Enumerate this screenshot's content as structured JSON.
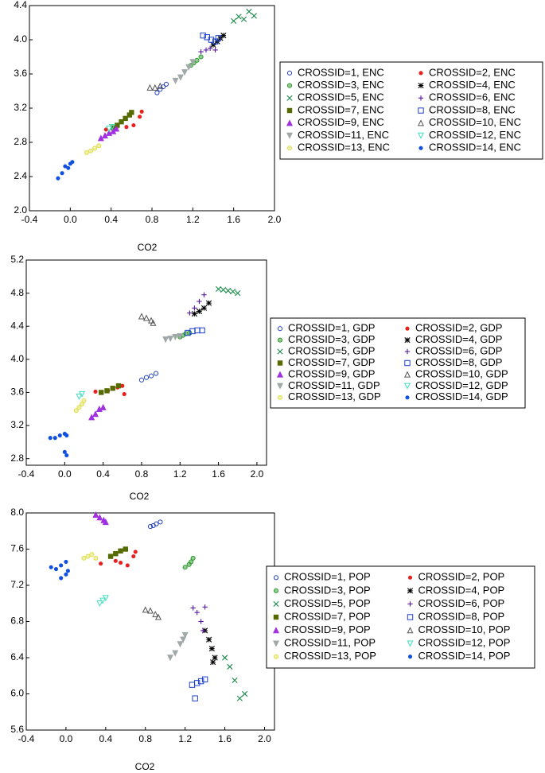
{
  "chart_data": [
    {
      "type": "scatter",
      "x_label": "CO2",
      "xlim": [
        -0.4,
        2.0
      ],
      "ylim": [
        2.0,
        4.4
      ],
      "xticks": [
        -0.4,
        {
          "value": 0,
          "label": "0.0"
        },
        0.4,
        0.8,
        1.2,
        1.6,
        {
          "value": 2,
          "label": "2.0"
        }
      ],
      "yticks": [
        {
          "value": 2,
          "label": "2.0"
        },
        2.4,
        2.8,
        3.2,
        3.6,
        {
          "value": 4,
          "label": "4.0"
        },
        4.4
      ],
      "series": [
        {
          "name": "CROSSID=1, ENC",
          "color": "#1f3fbf",
          "marker": "circle-open",
          "x": [
            0.85,
            0.88,
            0.91,
            0.94
          ],
          "values": [
            3.38,
            3.42,
            3.45,
            3.48
          ]
        },
        {
          "name": "CROSSID=2, ENC",
          "color": "#e8201e",
          "marker": "dot",
          "x": [
            0.35,
            0.45,
            0.55,
            0.62,
            0.68,
            0.7
          ],
          "values": [
            2.95,
            2.96,
            2.98,
            3.0,
            3.1,
            3.16
          ]
        },
        {
          "name": "CROSSID=3, ENC",
          "color": "#2a9a2a",
          "marker": "circle-half",
          "x": [
            1.18,
            1.21,
            1.24,
            1.28
          ],
          "values": [
            3.7,
            3.73,
            3.76,
            3.8
          ]
        },
        {
          "name": "CROSSID=4, ENC",
          "color": "#000000",
          "marker": "asterisk",
          "x": [
            1.4,
            1.44,
            1.47,
            1.5
          ],
          "values": [
            3.94,
            3.98,
            4.02,
            4.05
          ]
        },
        {
          "name": "CROSSID=5, ENC",
          "color": "#1a8a4a",
          "marker": "x",
          "x": [
            1.6,
            1.65,
            1.7,
            1.75,
            1.8
          ],
          "values": [
            4.22,
            4.27,
            4.24,
            4.33,
            4.28
          ]
        },
        {
          "name": "CROSSID=6, ENC",
          "color": "#5a1aa0",
          "marker": "plus",
          "x": [
            1.28,
            1.33,
            1.37,
            1.42
          ],
          "values": [
            3.86,
            3.88,
            3.9,
            3.88
          ]
        },
        {
          "name": "CROSSID=7, ENC",
          "color": "#556b00",
          "marker": "square",
          "x": [
            0.42,
            0.46,
            0.5,
            0.54,
            0.58,
            0.6
          ],
          "values": [
            2.97,
            3.0,
            3.04,
            3.08,
            3.12,
            3.15
          ]
        },
        {
          "name": "CROSSID=8, ENC",
          "color": "#1a3fcf",
          "marker": "square-open",
          "x": [
            1.3,
            1.34,
            1.38,
            1.42,
            1.45
          ],
          "values": [
            4.05,
            4.03,
            4.0,
            3.98,
            4.02
          ]
        },
        {
          "name": "CROSSID=9, ENC",
          "color": "#a030e0",
          "marker": "triangle",
          "x": [
            0.3,
            0.34,
            0.38,
            0.42,
            0.45
          ],
          "values": [
            2.85,
            2.88,
            2.91,
            2.93,
            2.96
          ]
        },
        {
          "name": "CROSSID=10, ENC",
          "color": "#555555",
          "marker": "triangle-open",
          "x": [
            0.78,
            0.83,
            0.88
          ],
          "values": [
            3.44,
            3.44,
            3.46
          ]
        },
        {
          "name": "CROSSID=11, ENC",
          "color": "#a0a8a8",
          "marker": "triangle-down",
          "x": [
            1.03,
            1.08,
            1.12,
            1.16,
            1.2
          ],
          "values": [
            3.52,
            3.56,
            3.62,
            3.68,
            3.74
          ]
        },
        {
          "name": "CROSSID=12, ENC",
          "color": "#40e0c0",
          "marker": "triangle-down-open",
          "x": [
            0.38,
            0.41
          ],
          "values": [
            2.96,
            2.98
          ]
        },
        {
          "name": "CROSSID=13, ENC",
          "color": "#e0e050",
          "marker": "circle-half",
          "x": [
            0.16,
            0.2,
            0.24,
            0.28
          ],
          "values": [
            2.68,
            2.7,
            2.73,
            2.76
          ]
        },
        {
          "name": "CROSSID=14, ENC",
          "color": "#1050e0",
          "marker": "dot",
          "x": [
            -0.12,
            -0.08,
            -0.05,
            -0.02,
            0.0,
            0.02
          ],
          "values": [
            2.38,
            2.44,
            2.52,
            2.5,
            2.55,
            2.57
          ]
        }
      ]
    },
    {
      "type": "scatter",
      "x_label": "CO2",
      "xlim": [
        -0.4,
        2.1
      ],
      "ylim": [
        2.72,
        5.2
      ],
      "xticks": [
        -0.4,
        {
          "value": 0,
          "label": "0.0"
        },
        0.4,
        0.8,
        1.2,
        1.6,
        {
          "value": 2,
          "label": "2.0"
        }
      ],
      "yticks": [
        2.8,
        3.2,
        3.6,
        {
          "value": 4,
          "label": "4.0"
        },
        4.4,
        4.8,
        5.2
      ],
      "series": [
        {
          "name": "CROSSID=1, GDP",
          "color": "#1f3fbf",
          "marker": "circle-open",
          "x": [
            0.8,
            0.85,
            0.9,
            0.95
          ],
          "values": [
            3.75,
            3.78,
            3.8,
            3.83
          ]
        },
        {
          "name": "CROSSID=2, GDP",
          "color": "#e8201e",
          "marker": "dot",
          "x": [
            0.32,
            0.45,
            0.55,
            0.6,
            0.62
          ],
          "values": [
            3.61,
            3.62,
            3.66,
            3.68,
            3.58
          ]
        },
        {
          "name": "CROSSID=3, GDP",
          "color": "#2a9a2a",
          "marker": "circle-half",
          "x": [
            1.2,
            1.23,
            1.26,
            1.3
          ],
          "values": [
            4.27,
            4.29,
            4.31,
            4.32
          ]
        },
        {
          "name": "CROSSID=4, GDP",
          "color": "#000000",
          "marker": "asterisk",
          "x": [
            1.35,
            1.4,
            1.45,
            1.5
          ],
          "values": [
            4.55,
            4.58,
            4.62,
            4.68
          ]
        },
        {
          "name": "CROSSID=5, GDP",
          "color": "#1a8a4a",
          "marker": "x",
          "x": [
            1.6,
            1.65,
            1.7,
            1.75,
            1.8
          ],
          "values": [
            4.85,
            4.84,
            4.83,
            4.82,
            4.8
          ]
        },
        {
          "name": "CROSSID=6, GDP",
          "color": "#5a1aa0",
          "marker": "plus",
          "x": [
            1.3,
            1.35,
            1.4,
            1.45
          ],
          "values": [
            4.56,
            4.62,
            4.7,
            4.78
          ]
        },
        {
          "name": "CROSSID=7, GDP",
          "color": "#556b00",
          "marker": "square",
          "x": [
            0.38,
            0.44,
            0.5,
            0.56
          ],
          "values": [
            3.6,
            3.62,
            3.65,
            3.68
          ]
        },
        {
          "name": "CROSSID=8, GDP",
          "color": "#1a3fcf",
          "marker": "square-open",
          "x": [
            1.28,
            1.33,
            1.38,
            1.43
          ],
          "values": [
            4.32,
            4.34,
            4.35,
            4.35
          ]
        },
        {
          "name": "CROSSID=9, GDP",
          "color": "#a030e0",
          "marker": "triangle",
          "x": [
            0.28,
            0.32,
            0.36,
            0.4
          ],
          "values": [
            3.3,
            3.34,
            3.4,
            3.42
          ]
        },
        {
          "name": "CROSSID=10, GDP",
          "color": "#555555",
          "marker": "triangle-open",
          "x": [
            0.8,
            0.85,
            0.9,
            0.92
          ],
          "values": [
            4.52,
            4.5,
            4.47,
            4.44
          ]
        },
        {
          "name": "CROSSID=11, GDP",
          "color": "#a0a8a8",
          "marker": "triangle-down",
          "x": [
            1.05,
            1.1,
            1.15,
            1.2
          ],
          "values": [
            4.24,
            4.25,
            4.27,
            4.28
          ]
        },
        {
          "name": "CROSSID=12, GDP",
          "color": "#40e0c0",
          "marker": "triangle-down-open",
          "x": [
            0.15,
            0.18
          ],
          "values": [
            3.55,
            3.58
          ]
        },
        {
          "name": "CROSSID=13, GDP",
          "color": "#e0e050",
          "marker": "circle-half",
          "x": [
            0.12,
            0.15,
            0.18,
            0.2
          ],
          "values": [
            3.38,
            3.42,
            3.46,
            3.5
          ]
        },
        {
          "name": "CROSSID=14, GDP",
          "color": "#1050e0",
          "marker": "dot",
          "x": [
            -0.15,
            -0.1,
            -0.05,
            0.0,
            0.02,
            0.0,
            0.02
          ],
          "values": [
            3.05,
            3.05,
            3.08,
            3.1,
            3.08,
            2.88,
            2.84
          ]
        }
      ]
    },
    {
      "type": "scatter",
      "x_label": "CO2",
      "xlim": [
        -0.4,
        2.1
      ],
      "ylim": [
        5.6,
        8.0
      ],
      "xticks": [
        -0.4,
        {
          "value": 0,
          "label": "0.0"
        },
        0.4,
        0.8,
        1.2,
        1.6,
        {
          "value": 2,
          "label": "2.0"
        }
      ],
      "yticks": [
        5.6,
        {
          "value": 6,
          "label": "6.0"
        },
        6.4,
        6.8,
        7.2,
        7.6,
        {
          "value": 8,
          "label": "8.0"
        }
      ],
      "series": [
        {
          "name": "CROSSID=1, POP",
          "color": "#1f3fbf",
          "marker": "circle-open",
          "x": [
            0.85,
            0.88,
            0.91,
            0.95
          ],
          "values": [
            7.85,
            7.86,
            7.88,
            7.9
          ]
        },
        {
          "name": "CROSSID=2, POP",
          "color": "#e8201e",
          "marker": "dot",
          "x": [
            0.35,
            0.5,
            0.55,
            0.62,
            0.68,
            0.7
          ],
          "values": [
            7.44,
            7.47,
            7.45,
            7.42,
            7.52,
            7.57
          ]
        },
        {
          "name": "CROSSID=3, POP",
          "color": "#2a9a2a",
          "marker": "circle-half",
          "x": [
            1.2,
            1.24,
            1.26,
            1.28
          ],
          "values": [
            7.4,
            7.43,
            7.46,
            7.5
          ]
        },
        {
          "name": "CROSSID=4, POP",
          "color": "#000000",
          "marker": "asterisk",
          "x": [
            1.4,
            1.44,
            1.47,
            1.5,
            1.48
          ],
          "values": [
            6.7,
            6.6,
            6.5,
            6.4,
            6.35
          ]
        },
        {
          "name": "CROSSID=5, POP",
          "color": "#1a8a4a",
          "marker": "x",
          "x": [
            1.6,
            1.65,
            1.7,
            1.75,
            1.8
          ],
          "values": [
            6.4,
            6.3,
            6.15,
            5.95,
            6.0
          ]
        },
        {
          "name": "CROSSID=6, POP",
          "color": "#5a1aa0",
          "marker": "plus",
          "x": [
            1.28,
            1.32,
            1.36,
            1.38,
            1.4
          ],
          "values": [
            6.95,
            6.9,
            6.8,
            6.7,
            6.96
          ]
        },
        {
          "name": "CROSSID=7, POP",
          "color": "#556b00",
          "marker": "square",
          "x": [
            0.45,
            0.5,
            0.55,
            0.6
          ],
          "values": [
            7.52,
            7.55,
            7.58,
            7.6
          ]
        },
        {
          "name": "CROSSID=8, POP",
          "color": "#1a3fcf",
          "marker": "square-open",
          "x": [
            1.27,
            1.32,
            1.36,
            1.4,
            1.3
          ],
          "values": [
            6.1,
            6.12,
            6.14,
            6.16,
            5.95
          ]
        },
        {
          "name": "CROSSID=9, POP",
          "color": "#a030e0",
          "marker": "triangle",
          "x": [
            0.3,
            0.34,
            0.38,
            0.4
          ],
          "values": [
            7.98,
            7.95,
            7.92,
            7.9
          ]
        },
        {
          "name": "CROSSID=10, POP",
          "color": "#555555",
          "marker": "triangle-open",
          "x": [
            0.8,
            0.85,
            0.9,
            0.93
          ],
          "values": [
            6.93,
            6.92,
            6.88,
            6.85
          ]
        },
        {
          "name": "CROSSID=11, POP",
          "color": "#a0a8a8",
          "marker": "triangle-down",
          "x": [
            1.05,
            1.1,
            1.15,
            1.18,
            1.2
          ],
          "values": [
            6.4,
            6.45,
            6.55,
            6.6,
            6.65
          ]
        },
        {
          "name": "CROSSID=12, POP",
          "color": "#40e0c0",
          "marker": "triangle-down-open",
          "x": [
            0.34,
            0.37,
            0.4
          ],
          "values": [
            7.0,
            7.03,
            7.06
          ]
        },
        {
          "name": "CROSSID=13, POP",
          "color": "#e0e050",
          "marker": "circle-half",
          "x": [
            0.18,
            0.22,
            0.26,
            0.3
          ],
          "values": [
            7.5,
            7.52,
            7.54,
            7.5
          ]
        },
        {
          "name": "CROSSID=14, POP",
          "color": "#1050e0",
          "marker": "dot",
          "x": [
            -0.15,
            -0.1,
            -0.05,
            0.0,
            0.02,
            0.0,
            -0.05
          ],
          "values": [
            7.4,
            7.38,
            7.42,
            7.46,
            7.36,
            7.32,
            7.28
          ]
        }
      ]
    }
  ]
}
